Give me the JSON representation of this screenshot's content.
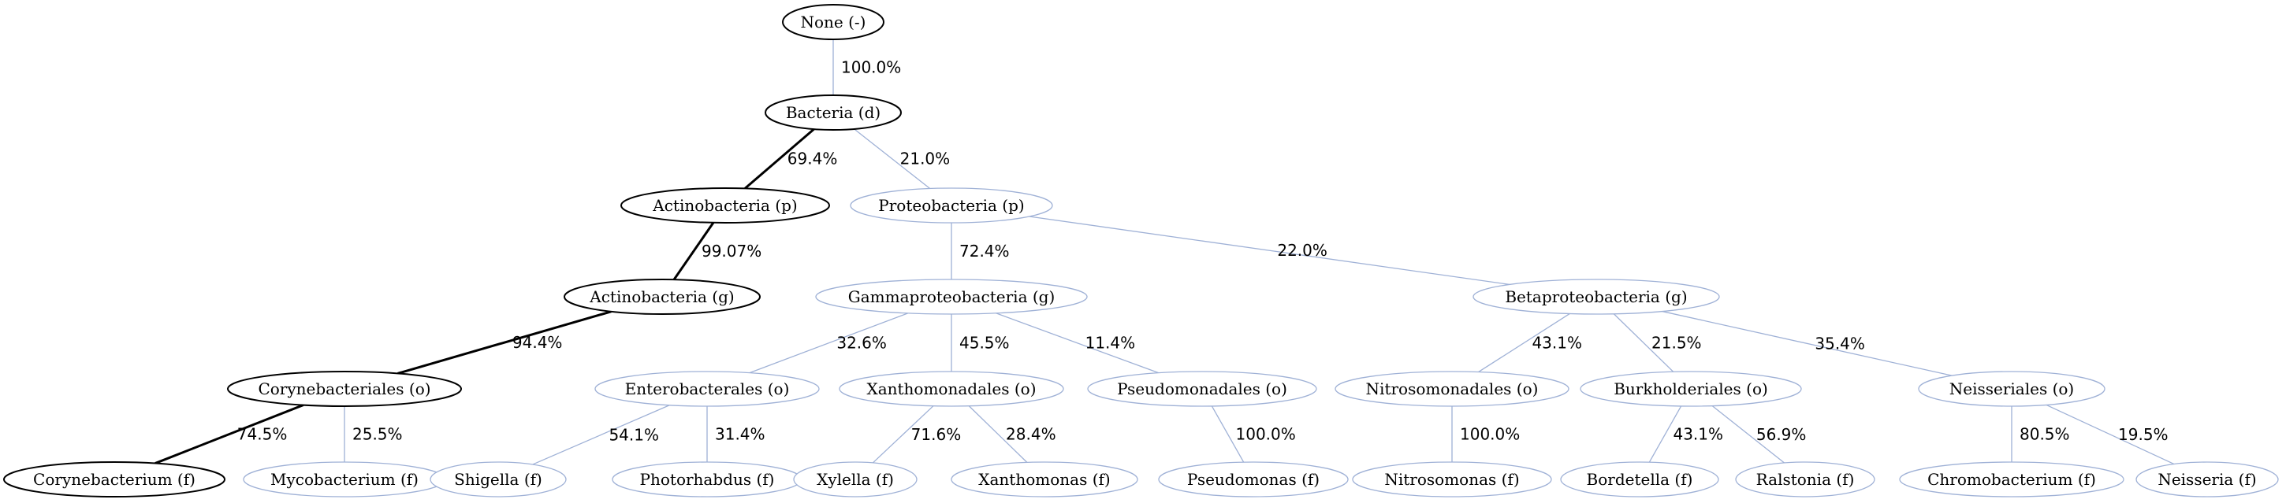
{
  "colors": {
    "primary": "#000000",
    "secondary": "#9fb1d6"
  },
  "nodes": [
    {
      "id": "none",
      "label": "None (-)",
      "highlight": true
    },
    {
      "id": "bacteria",
      "label": "Bacteria (d)",
      "highlight": true
    },
    {
      "id": "actinobacteria_p",
      "label": "Actinobacteria (p)",
      "highlight": true
    },
    {
      "id": "proteobacteria",
      "label": "Proteobacteria (p)",
      "highlight": false
    },
    {
      "id": "actinobacteria_g",
      "label": "Actinobacteria (g)",
      "highlight": true
    },
    {
      "id": "gammaproteobacteria",
      "label": "Gammaproteobacteria (g)",
      "highlight": false
    },
    {
      "id": "betaproteobacteria",
      "label": "Betaproteobacteria (g)",
      "highlight": false
    },
    {
      "id": "corynebacteriales",
      "label": "Corynebacteriales (o)",
      "highlight": true
    },
    {
      "id": "enterobacterales",
      "label": "Enterobacterales (o)",
      "highlight": false
    },
    {
      "id": "xanthomonadales",
      "label": "Xanthomonadales (o)",
      "highlight": false
    },
    {
      "id": "pseudomonadales",
      "label": "Pseudomonadales (o)",
      "highlight": false
    },
    {
      "id": "nitrosomonadales",
      "label": "Nitrosomonadales (o)",
      "highlight": false
    },
    {
      "id": "burkholderiales",
      "label": "Burkholderiales (o)",
      "highlight": false
    },
    {
      "id": "neisseriales",
      "label": "Neisseriales (o)",
      "highlight": false
    },
    {
      "id": "corynebacterium",
      "label": "Corynebacterium (f)",
      "highlight": true
    },
    {
      "id": "mycobacterium",
      "label": "Mycobacterium (f)",
      "highlight": false
    },
    {
      "id": "shigella",
      "label": "Shigella (f)",
      "highlight": false
    },
    {
      "id": "photorhabdus",
      "label": "Photorhabdus (f)",
      "highlight": false
    },
    {
      "id": "xylella",
      "label": "Xylella (f)",
      "highlight": false
    },
    {
      "id": "xanthomonas",
      "label": "Xanthomonas (f)",
      "highlight": false
    },
    {
      "id": "pseudomonas",
      "label": "Pseudomonas (f)",
      "highlight": false
    },
    {
      "id": "nitrosomonas",
      "label": "Nitrosomonas (f)",
      "highlight": false
    },
    {
      "id": "bordetella",
      "label": "Bordetella (f)",
      "highlight": false
    },
    {
      "id": "ralstonia",
      "label": "Ralstonia (f)",
      "highlight": false
    },
    {
      "id": "chromobacterium",
      "label": "Chromobacterium (f)",
      "highlight": false
    },
    {
      "id": "neisseria",
      "label": "Neisseria (f)",
      "highlight": false
    }
  ],
  "edges": [
    {
      "from": "none",
      "to": "bacteria",
      "label": "100.0%",
      "highlight": false
    },
    {
      "from": "bacteria",
      "to": "actinobacteria_p",
      "label": "69.4%",
      "highlight": true
    },
    {
      "from": "bacteria",
      "to": "proteobacteria",
      "label": "21.0%",
      "highlight": false
    },
    {
      "from": "actinobacteria_p",
      "to": "actinobacteria_g",
      "label": "99.07%",
      "highlight": true
    },
    {
      "from": "proteobacteria",
      "to": "gammaproteobacteria",
      "label": "72.4%",
      "highlight": false
    },
    {
      "from": "proteobacteria",
      "to": "betaproteobacteria",
      "label": "22.0%",
      "highlight": false
    },
    {
      "from": "actinobacteria_g",
      "to": "corynebacteriales",
      "label": "94.4%",
      "highlight": true
    },
    {
      "from": "gammaproteobacteria",
      "to": "enterobacterales",
      "label": "32.6%",
      "highlight": false
    },
    {
      "from": "gammaproteobacteria",
      "to": "xanthomonadales",
      "label": "45.5%",
      "highlight": false
    },
    {
      "from": "gammaproteobacteria",
      "to": "pseudomonadales",
      "label": "11.4%",
      "highlight": false
    },
    {
      "from": "betaproteobacteria",
      "to": "nitrosomonadales",
      "label": "43.1%",
      "highlight": false
    },
    {
      "from": "betaproteobacteria",
      "to": "burkholderiales",
      "label": "21.5%",
      "highlight": false
    },
    {
      "from": "betaproteobacteria",
      "to": "neisseriales",
      "label": "35.4%",
      "highlight": false
    },
    {
      "from": "corynebacteriales",
      "to": "corynebacterium",
      "label": "74.5%",
      "highlight": true
    },
    {
      "from": "corynebacteriales",
      "to": "mycobacterium",
      "label": "25.5%",
      "highlight": false
    },
    {
      "from": "enterobacterales",
      "to": "shigella",
      "label": "54.1%",
      "highlight": false
    },
    {
      "from": "enterobacterales",
      "to": "photorhabdus",
      "label": "31.4%",
      "highlight": false
    },
    {
      "from": "xanthomonadales",
      "to": "xylella",
      "label": "71.6%",
      "highlight": false
    },
    {
      "from": "xanthomonadales",
      "to": "xanthomonas",
      "label": "28.4%",
      "highlight": false
    },
    {
      "from": "pseudomonadales",
      "to": "pseudomonas",
      "label": "100.0%",
      "highlight": false
    },
    {
      "from": "nitrosomonadales",
      "to": "nitrosomonas",
      "label": "100.0%",
      "highlight": false
    },
    {
      "from": "burkholderiales",
      "to": "bordetella",
      "label": "43.1%",
      "highlight": false
    },
    {
      "from": "burkholderiales",
      "to": "ralstonia",
      "label": "56.9%",
      "highlight": false
    },
    {
      "from": "neisseriales",
      "to": "chromobacterium",
      "label": "80.5%",
      "highlight": false
    },
    {
      "from": "neisseriales",
      "to": "neisseria",
      "label": "19.5%",
      "highlight": false
    }
  ]
}
